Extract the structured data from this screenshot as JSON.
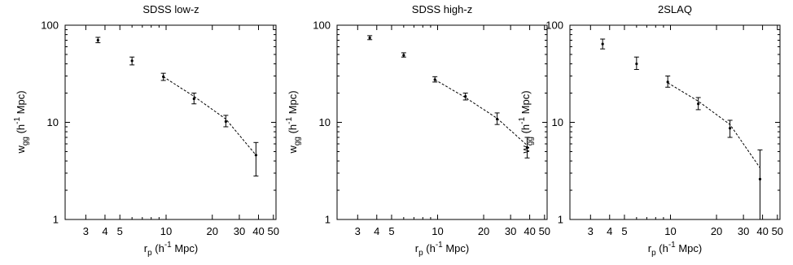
{
  "chart_data": [
    {
      "type": "scatter",
      "title": "SDSS low-z",
      "xlabel": "r_p (h^-1 Mpc)",
      "ylabel": "w_gg (h^-1 Mpc)",
      "xscale": "log",
      "yscale": "log",
      "xlim": [
        2.2,
        52
      ],
      "ylim": [
        1,
        100
      ],
      "xticks": [
        3,
        4,
        5,
        10,
        20,
        30,
        40,
        50
      ],
      "yticks": [
        1,
        10,
        100
      ],
      "points": [
        {
          "x": 3.6,
          "y": 70,
          "lo": 66,
          "hi": 75
        },
        {
          "x": 6.0,
          "y": 43,
          "lo": 39,
          "hi": 47
        },
        {
          "x": 9.6,
          "y": 29.5,
          "lo": 27,
          "hi": 32
        },
        {
          "x": 15.2,
          "y": 17.5,
          "lo": 15.5,
          "hi": 20
        },
        {
          "x": 24.5,
          "y": 10.2,
          "lo": 9.0,
          "hi": 11.8
        },
        {
          "x": 38.5,
          "y": 4.6,
          "lo": 2.8,
          "hi": 6.2
        }
      ],
      "model": {
        "x": [
          9.6,
          15.2,
          24.5,
          38.5
        ],
        "y": [
          29.5,
          18.5,
          10.8,
          4.6
        ]
      }
    },
    {
      "type": "scatter",
      "title": "SDSS high-z",
      "xlabel": "r_p (h^-1 Mpc)",
      "ylabel": "w_gg (h^-1 Mpc)",
      "xscale": "log",
      "yscale": "log",
      "xlim": [
        2.2,
        52
      ],
      "ylim": [
        1,
        100
      ],
      "xticks": [
        3,
        4,
        5,
        10,
        20,
        30,
        40,
        50
      ],
      "yticks": [
        1,
        10,
        100
      ],
      "points": [
        {
          "x": 3.6,
          "y": 74,
          "lo": 71,
          "hi": 78
        },
        {
          "x": 6.0,
          "y": 49,
          "lo": 47,
          "hi": 52
        },
        {
          "x": 9.6,
          "y": 27.5,
          "lo": 26,
          "hi": 29.5
        },
        {
          "x": 15.2,
          "y": 18.5,
          "lo": 17,
          "hi": 20
        },
        {
          "x": 24.5,
          "y": 10.8,
          "lo": 9.5,
          "hi": 12.5
        },
        {
          "x": 38.5,
          "y": 5.5,
          "lo": 4.3,
          "hi": 7.0
        }
      ],
      "model": {
        "x": [
          9.6,
          15.2,
          24.5,
          38.5
        ],
        "y": [
          27.5,
          18.0,
          11.0,
          5.8
        ]
      }
    },
    {
      "type": "scatter",
      "title": "2SLAQ",
      "xlabel": "r_p (h^-1 Mpc)",
      "ylabel": "w_gg (h^-1 Mpc)",
      "xscale": "log",
      "yscale": "log",
      "xlim": [
        2.2,
        52
      ],
      "ylim": [
        1,
        100
      ],
      "xticks": [
        3,
        4,
        5,
        10,
        20,
        30,
        40,
        50
      ],
      "yticks": [
        1,
        10,
        100
      ],
      "points": [
        {
          "x": 3.6,
          "y": 64,
          "lo": 57,
          "hi": 72
        },
        {
          "x": 6.0,
          "y": 40,
          "lo": 35,
          "hi": 47
        },
        {
          "x": 9.6,
          "y": 26,
          "lo": 23,
          "hi": 30
        },
        {
          "x": 15.2,
          "y": 15.5,
          "lo": 13.5,
          "hi": 18
        },
        {
          "x": 24.5,
          "y": 8.7,
          "lo": 7.0,
          "hi": 10.5
        },
        {
          "x": 38.5,
          "y": 2.6,
          "lo": 1.0,
          "hi": 5.2
        }
      ],
      "model": {
        "x": [
          9.6,
          15.2,
          24.5,
          38.5
        ],
        "y": [
          25.5,
          16.5,
          9.5,
          3.4
        ]
      }
    }
  ]
}
